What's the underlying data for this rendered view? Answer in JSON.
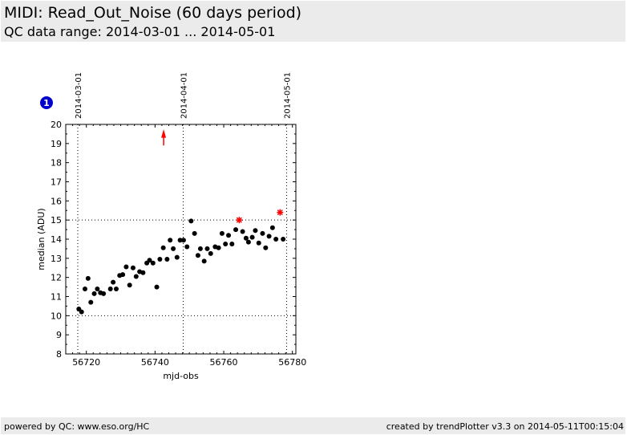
{
  "header": {
    "title": "MIDI: Read_Out_Noise (60 days period)",
    "subtitle": "QC data range: 2014-03-01 ... 2014-05-01"
  },
  "footer": {
    "left": "powered by QC: www.eso.org/HC",
    "right": "created by trendPlotter v3.3 on 2014-05-11T00:15:04"
  },
  "badge": {
    "label": "1",
    "color": "#0000cc"
  },
  "chart_data": {
    "type": "scatter",
    "xlabel": "mjd-obs",
    "ylabel": "median (ADU)",
    "xlim": [
      56714,
      56781
    ],
    "ylim": [
      8,
      20
    ],
    "xticks": [
      56720,
      56740,
      56760,
      56780
    ],
    "yticks": [
      8,
      9,
      10,
      11,
      12,
      13,
      14,
      15,
      16,
      17,
      18,
      19,
      20
    ],
    "grid": "dotted",
    "hlines": [
      10,
      15
    ],
    "date_markers": [
      {
        "x": 56717.5,
        "label": "2014-03-01"
      },
      {
        "x": 56748.2,
        "label": "2014-04-01"
      },
      {
        "x": 56778.3,
        "label": "2014-05-01"
      }
    ],
    "colors": {
      "normal": "#000000",
      "outlier": "#ff0000"
    },
    "series": [
      {
        "x": [
          56717.8,
          56718.6,
          56719.6,
          56720.5,
          56721.3,
          56722.3,
          56723.2,
          56724.1,
          56725.0,
          56727.0,
          56727.8,
          56728.7,
          56729.7,
          56730.6,
          56731.6,
          56732.6,
          56733.6,
          56734.5,
          56735.5,
          56736.5,
          56737.6,
          56738.4,
          56739.4,
          56740.5,
          56741.4,
          56742.4,
          56743.5,
          56744.4,
          56745.3,
          56746.4,
          56747.3,
          56748.3,
          56749.3,
          56750.5,
          56751.5,
          56752.5,
          56753.2,
          56754.3,
          56755.2,
          56756.2,
          56757.5,
          56758.5,
          56759.5,
          56760.5,
          56761.4,
          56762.4,
          56763.5,
          56765.5,
          56766.5,
          56767.2,
          56768.3,
          56769.2,
          56770.2,
          56771.3,
          56772.2,
          56773.2,
          56774.2,
          56775.2,
          56777.3
        ],
        "y": [
          10.35,
          10.2,
          11.4,
          11.95,
          10.7,
          11.15,
          11.4,
          11.2,
          11.15,
          11.4,
          11.75,
          11.4,
          12.1,
          12.15,
          12.55,
          11.6,
          12.5,
          12.05,
          12.3,
          12.25,
          12.75,
          12.9,
          12.75,
          11.5,
          12.95,
          13.55,
          12.95,
          13.95,
          13.5,
          13.05,
          13.95,
          13.95,
          13.6,
          14.95,
          14.3,
          13.15,
          13.5,
          12.85,
          13.5,
          13.25,
          13.6,
          13.55,
          14.3,
          13.75,
          14.2,
          13.75,
          14.5,
          14.4,
          14.05,
          13.85,
          14.1,
          14.45,
          13.8,
          14.3,
          13.55,
          14.15,
          14.6,
          14.0,
          14.0
        ]
      },
      {
        "name": "outliers",
        "x": [
          56764.5,
          56776.4
        ],
        "y": [
          15.0,
          15.4
        ]
      },
      {
        "name": "off-scale",
        "x": [
          56742.5
        ],
        "y": [
          19.6
        ]
      }
    ]
  }
}
